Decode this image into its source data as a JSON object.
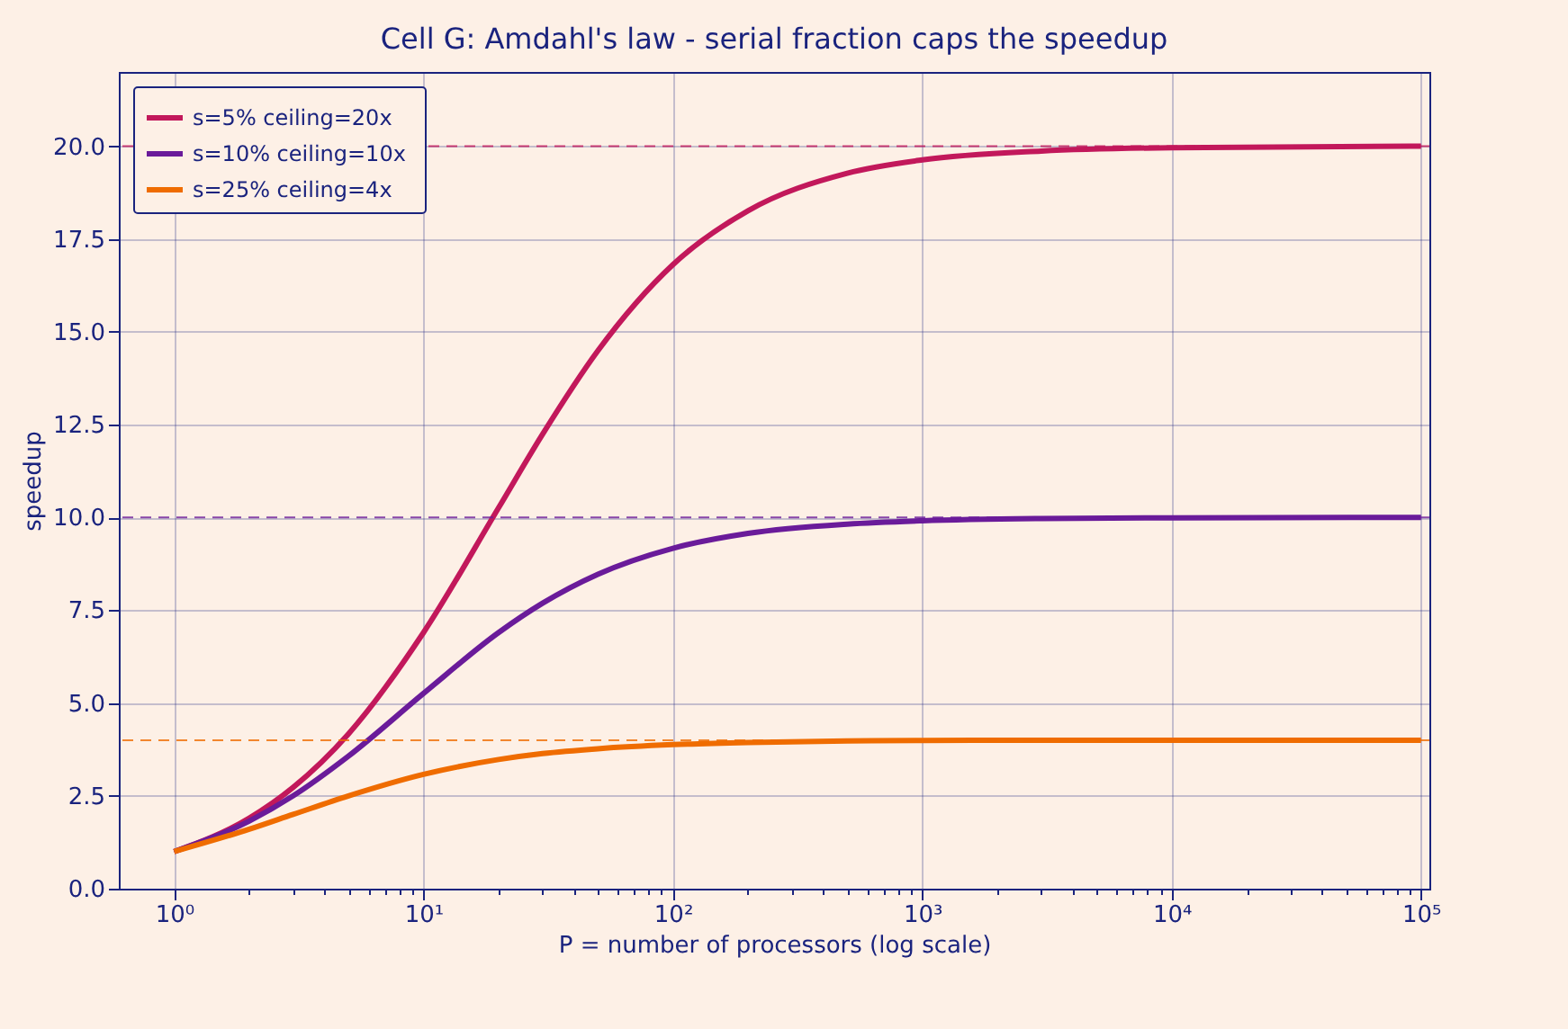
{
  "chart_data": {
    "type": "line",
    "title": "Cell G: Amdahl's law - serial fraction caps the speedup",
    "xlabel": "P = number of processors (log scale)",
    "ylabel": "speedup",
    "x": [
      1,
      2,
      3,
      5,
      10,
      20,
      30,
      50,
      100,
      200,
      500,
      1000,
      3000,
      10000,
      100000
    ],
    "series": [
      {
        "name": "s=5%  ceiling=20x",
        "color": "#c2185b",
        "values": [
          1,
          1.9,
          2.73,
          4.17,
          6.9,
          10.26,
          12.24,
          14.49,
          16.81,
          18.26,
          19.27,
          19.63,
          19.87,
          19.96,
          20
        ]
      },
      {
        "name": "s=10%  ceiling=10x",
        "color": "#6a1b9a",
        "values": [
          1,
          1.82,
          2.5,
          3.57,
          5.26,
          6.9,
          7.69,
          8.47,
          9.17,
          9.57,
          9.82,
          9.91,
          9.97,
          9.99,
          10
        ]
      },
      {
        "name": "s=25%  ceiling=4x",
        "color": "#ef6c00",
        "values": [
          1,
          1.6,
          2,
          2.5,
          3.08,
          3.48,
          3.64,
          3.77,
          3.88,
          3.94,
          3.98,
          3.99,
          4,
          4,
          4
        ]
      }
    ],
    "log": "x",
    "xlim": [
      0.6,
      108000
    ],
    "xticks": [
      {
        "value": 1,
        "label": "10⁰"
      },
      {
        "value": 2,
        "label": null
      },
      {
        "value": 3,
        "label": null
      },
      {
        "value": 4,
        "label": null
      },
      {
        "value": 5,
        "label": null
      },
      {
        "value": 6,
        "label": null
      },
      {
        "value": 7,
        "label": null
      },
      {
        "value": 8,
        "label": null
      },
      {
        "value": 9,
        "label": null
      },
      {
        "value": 10,
        "label": "10¹"
      },
      {
        "value": 20,
        "label": null
      },
      {
        "value": 30,
        "label": null
      },
      {
        "value": 40,
        "label": null
      },
      {
        "value": 50,
        "label": null
      },
      {
        "value": 60,
        "label": null
      },
      {
        "value": 70,
        "label": null
      },
      {
        "value": 80,
        "label": null
      },
      {
        "value": 90,
        "label": null
      },
      {
        "value": 100,
        "label": "10²"
      },
      {
        "value": 200,
        "label": null
      },
      {
        "value": 300,
        "label": null
      },
      {
        "value": 400,
        "label": null
      },
      {
        "value": 500,
        "label": null
      },
      {
        "value": 600,
        "label": null
      },
      {
        "value": 700,
        "label": null
      },
      {
        "value": 800,
        "label": null
      },
      {
        "value": 900,
        "label": null
      },
      {
        "value": 1000,
        "label": "10³"
      },
      {
        "value": 2000,
        "label": null
      },
      {
        "value": 3000,
        "label": null
      },
      {
        "value": 4000,
        "label": null
      },
      {
        "value": 5000,
        "label": null
      },
      {
        "value": 6000,
        "label": null
      },
      {
        "value": 7000,
        "label": null
      },
      {
        "value": 8000,
        "label": null
      },
      {
        "value": 9000,
        "label": null
      },
      {
        "value": 10000,
        "label": "10⁴"
      },
      {
        "value": 20000,
        "label": null
      },
      {
        "value": 30000,
        "label": null
      },
      {
        "value": 40000,
        "label": null
      },
      {
        "value": 50000,
        "label": null
      },
      {
        "value": 60000,
        "label": null
      },
      {
        "value": 70000,
        "label": null
      },
      {
        "value": 80000,
        "label": null
      },
      {
        "value": 90000,
        "label": null
      },
      {
        "value": 100000,
        "label": "10⁵"
      }
    ],
    "ylim": [
      0,
      22
    ],
    "yticks": [
      {
        "value": 0,
        "label": "0.0"
      },
      {
        "value": 2.5,
        "label": "2.5"
      },
      {
        "value": 5,
        "label": "5.0"
      },
      {
        "value": 7.5,
        "label": "7.5"
      },
      {
        "value": 10,
        "label": "10.0"
      },
      {
        "value": 12.5,
        "label": "12.5"
      },
      {
        "value": 15,
        "label": "15.0"
      },
      {
        "value": 17.5,
        "label": "17.5"
      },
      {
        "value": 20,
        "label": "20.0"
      }
    ],
    "ref_lines": [
      {
        "axis": "y",
        "value": 20,
        "color": "#c2185b",
        "line_style": "dashed"
      },
      {
        "axis": "y",
        "value": 10,
        "color": "#6a1b9a",
        "line_style": "dashed"
      },
      {
        "axis": "y",
        "value": 4,
        "color": "#ef6c00",
        "line_style": "dashed"
      }
    ],
    "grid": true,
    "legend": "top left",
    "marker": "none",
    "line_style": "solid"
  }
}
